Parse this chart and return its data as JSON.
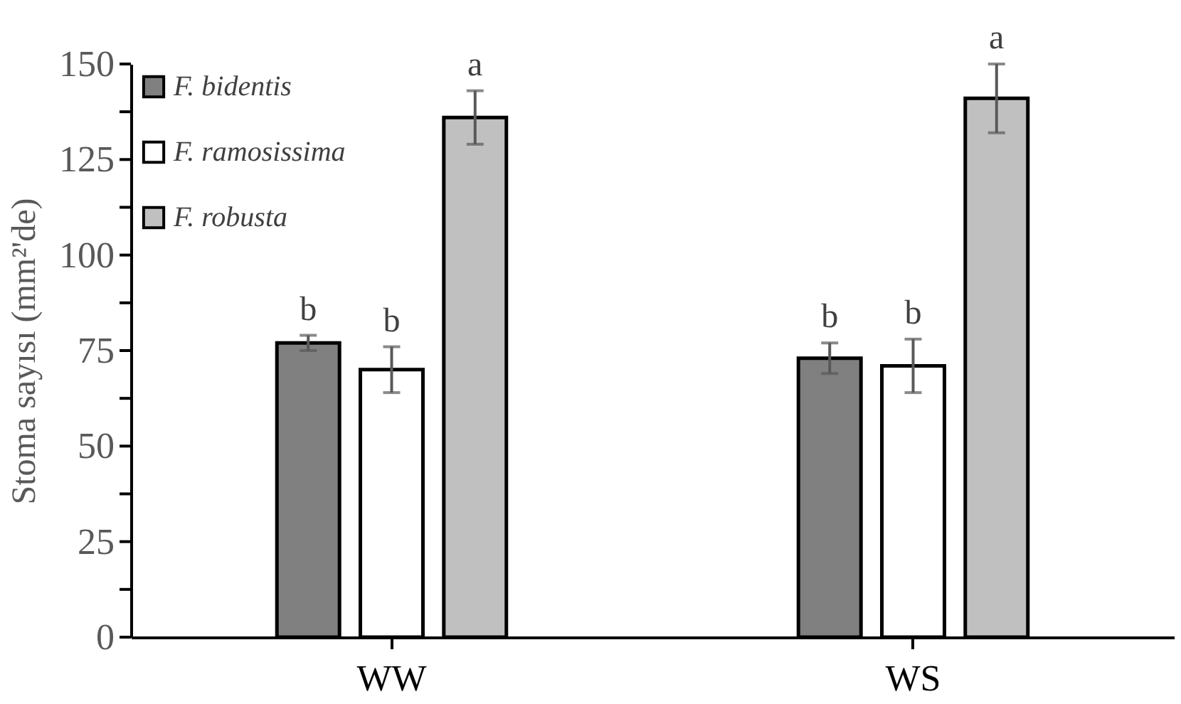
{
  "chart_data": {
    "type": "bar",
    "ylabel": "Stoma sayısı (mm²'de)",
    "categories": [
      "WW",
      "WS"
    ],
    "series": [
      {
        "name": "F. bidentis",
        "color": "#808080",
        "values": [
          77,
          73
        ],
        "errors": [
          2,
          4
        ],
        "value_labels": [
          "b",
          "b"
        ]
      },
      {
        "name": "F. ramosissima",
        "color": "#ffffff",
        "values": [
          70,
          71
        ],
        "errors": [
          6,
          7
        ],
        "value_labels": [
          "b",
          "b"
        ]
      },
      {
        "name": "F. robusta",
        "color": "#c0c0c0",
        "values": [
          136,
          141
        ],
        "errors": [
          7,
          9
        ],
        "value_labels": [
          "a",
          "a"
        ]
      }
    ],
    "ylim": [
      0,
      150
    ],
    "yticks": [
      0,
      {
        "value": 12.5,
        "label": null
      },
      25,
      {
        "value": 37.5,
        "label": null
      },
      50,
      {
        "value": 62.5,
        "label": null
      },
      75,
      {
        "value": 87.5,
        "label": null
      },
      100,
      {
        "value": 112.5,
        "label": null
      },
      125,
      {
        "value": 137.5,
        "label": null
      },
      150
    ],
    "grid": false,
    "legend": "top left"
  }
}
